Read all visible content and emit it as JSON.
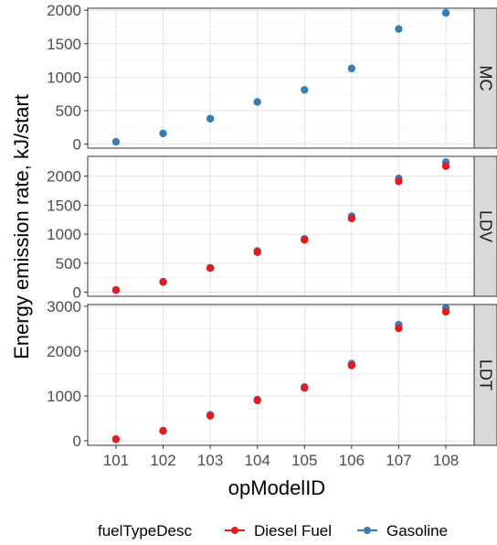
{
  "chart_data": {
    "type": "scatter",
    "xlabel": "opModelID",
    "ylabel": "Energy emission rate, kJ/start",
    "x": [
      "101",
      "102",
      "103",
      "104",
      "105",
      "106",
      "107",
      "108"
    ],
    "grid": true,
    "legend": {
      "title": "fuelTypeDesc",
      "placement": "bottom",
      "entries": [
        "Diesel Fuel",
        "Gasoline"
      ]
    },
    "colors": {
      "Diesel Fuel": "#e41a1c",
      "Gasoline": "#377eb8"
    },
    "panels": [
      {
        "strip": "MC",
        "ylim": [
          -60,
          2030
        ],
        "yticks": [
          0,
          500,
          1000,
          1500,
          2000
        ],
        "series": [
          {
            "name": "Gasoline",
            "values": [
              35,
              160,
              380,
              630,
              810,
              1130,
              1720,
              1960
            ]
          }
        ]
      },
      {
        "strip": "LDV",
        "ylim": [
          -70,
          2340
        ],
        "yticks": [
          0,
          500,
          1000,
          1500,
          2000
        ],
        "series": [
          {
            "name": "Gasoline",
            "values": [
              40,
              180,
              420,
              710,
              920,
              1310,
              1960,
              2240
            ]
          },
          {
            "name": "Diesel Fuel",
            "values": [
              35,
              175,
              415,
              690,
              900,
              1270,
              1910,
              2170
            ]
          }
        ]
      },
      {
        "strip": "LDT",
        "ylim": [
          -100,
          3040
        ],
        "yticks": [
          0,
          1000,
          2000,
          3000
        ],
        "series": [
          {
            "name": "Gasoline",
            "values": [
              40,
              230,
              580,
              920,
              1200,
              1720,
              2590,
              2960
            ]
          },
          {
            "name": "Diesel Fuel",
            "values": [
              35,
              220,
              560,
              900,
              1180,
              1680,
              2510,
              2880
            ]
          }
        ]
      }
    ]
  }
}
